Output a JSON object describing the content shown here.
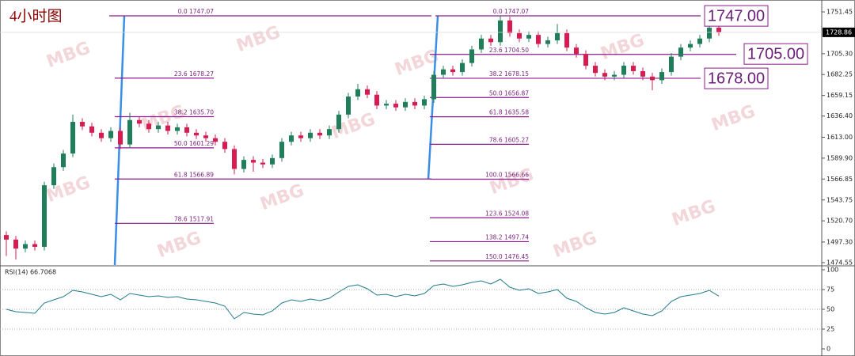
{
  "chart_data": [
    {
      "type": "candlestick",
      "title": "4小时图",
      "watermark": "MBG",
      "up_color": "#1f7f5a",
      "down_color": "#d81b50",
      "open": [
        1505,
        1500,
        1490,
        1495,
        1492,
        1560,
        1580,
        1595,
        1630,
        1625,
        1618,
        1612,
        1620,
        1605,
        1632,
        1628,
        1622,
        1626,
        1620,
        1624,
        1618,
        1615,
        1612,
        1608,
        1600,
        1578,
        1588,
        1585,
        1583,
        1590,
        1608,
        1615,
        1612,
        1618,
        1615,
        1622,
        1638,
        1658,
        1666,
        1660,
        1648,
        1650,
        1646,
        1652,
        1648,
        1655,
        1682,
        1688,
        1685,
        1695,
        1710,
        1722,
        1718,
        1742,
        1728,
        1722,
        1726,
        1716,
        1720,
        1728,
        1712,
        1705,
        1692,
        1684,
        1680,
        1682,
        1692,
        1686,
        1680,
        1676,
        1685,
        1702,
        1712,
        1716,
        1722,
        1734
      ],
      "high": [
        1509,
        1504,
        1499,
        1499,
        1564,
        1584,
        1599,
        1638,
        1634,
        1629,
        1622,
        1624,
        1624,
        1640,
        1636,
        1632,
        1630,
        1630,
        1628,
        1628,
        1622,
        1619,
        1616,
        1612,
        1604,
        1592,
        1592,
        1589,
        1594,
        1612,
        1619,
        1619,
        1622,
        1622,
        1626,
        1642,
        1662,
        1672,
        1670,
        1664,
        1654,
        1654,
        1656,
        1656,
        1659,
        1686,
        1692,
        1692,
        1699,
        1714,
        1726,
        1726,
        1747,
        1746,
        1732,
        1730,
        1730,
        1724,
        1738,
        1732,
        1716,
        1709,
        1696,
        1688,
        1686,
        1696,
        1696,
        1690,
        1684,
        1689,
        1706,
        1716,
        1720,
        1726,
        1740,
        1738
      ],
      "low": [
        1482,
        1478,
        1486,
        1488,
        1488,
        1556,
        1576,
        1591,
        1621,
        1614,
        1608,
        1608,
        1600,
        1601,
        1624,
        1618,
        1618,
        1616,
        1616,
        1614,
        1611,
        1608,
        1604,
        1596,
        1572,
        1574,
        1575,
        1579,
        1579,
        1586,
        1604,
        1608,
        1608,
        1611,
        1611,
        1618,
        1634,
        1654,
        1656,
        1644,
        1644,
        1642,
        1642,
        1644,
        1644,
        1651,
        1678,
        1681,
        1681,
        1691,
        1706,
        1714,
        1714,
        1724,
        1718,
        1718,
        1712,
        1712,
        1716,
        1708,
        1701,
        1688,
        1680,
        1676,
        1676,
        1678,
        1682,
        1676,
        1665,
        1672,
        1681,
        1698,
        1708,
        1712,
        1718,
        1725
      ],
      "close": [
        1500,
        1490,
        1495,
        1492,
        1560,
        1580,
        1595,
        1630,
        1625,
        1618,
        1612,
        1620,
        1605,
        1632,
        1628,
        1622,
        1626,
        1620,
        1624,
        1618,
        1615,
        1612,
        1608,
        1600,
        1578,
        1588,
        1585,
        1583,
        1590,
        1608,
        1615,
        1612,
        1618,
        1615,
        1622,
        1638,
        1658,
        1666,
        1660,
        1648,
        1650,
        1646,
        1652,
        1648,
        1655,
        1682,
        1688,
        1685,
        1695,
        1710,
        1722,
        1718,
        1742,
        1728,
        1722,
        1726,
        1716,
        1720,
        1728,
        1712,
        1705,
        1692,
        1684,
        1680,
        1682,
        1692,
        1686,
        1680,
        1676,
        1685,
        1702,
        1712,
        1716,
        1722,
        1734,
        1729
      ],
      "ylim": [
        1471.9,
        1760.2
      ],
      "yticks": [
        {
          "value": 1751.45,
          "label": "1751.45"
        },
        {
          "value": 1705.3,
          "label": "1705.30"
        },
        {
          "value": 1682.25,
          "label": "1682.25"
        },
        {
          "value": 1659.15,
          "label": "1659.15"
        },
        {
          "value": 1636.4,
          "label": "1636.40"
        },
        {
          "value": 1613,
          "label": "1613.00"
        },
        {
          "value": 1589.9,
          "label": "1589.90"
        },
        {
          "value": 1566.85,
          "label": "1566.85"
        },
        {
          "value": 1543.75,
          "label": "1543.75"
        },
        {
          "value": 1520.7,
          "label": "1520.70"
        },
        {
          "value": 1497.3,
          "label": "1497.30"
        },
        {
          "value": 1474.55,
          "label": "1474.55"
        }
      ],
      "current_price": 1728.86,
      "fib_color": "#8b1a8b",
      "swing_color": "#3a8ee6",
      "fib_levels": [
        {
          "label": "0.0  1747.07",
          "value": 1747.07
        },
        {
          "label": "23.6  1678.27",
          "value": 1678.27
        },
        {
          "label": "38.2  1635.70",
          "value": 1635.7
        },
        {
          "label": "50.0  1601.29",
          "value": 1601.29
        },
        {
          "label": "61.8  1566.89",
          "value": 1566.89
        },
        {
          "label": "78.6  1517.91",
          "value": 1517.91
        },
        {
          "label": "0.0  1747.07",
          "value": 1747.07
        },
        {
          "label": "23.6  1704.50",
          "value": 1704.5
        },
        {
          "label": "38.2  1678.15",
          "value": 1678.15
        },
        {
          "label": "50.0  1656.87",
          "value": 1656.87
        },
        {
          "label": "61.8  1635.58",
          "value": 1635.58
        },
        {
          "label": "78.6  1605.27",
          "value": 1605.27
        },
        {
          "label": "100.0  1566.66",
          "value": 1566.66
        },
        {
          "label": "123.6  1524.08",
          "value": 1524.08
        },
        {
          "label": "138.2  1497.74",
          "value": 1497.74
        },
        {
          "label": "150.0  1476.45",
          "value": 1476.45
        }
      ],
      "annotations": [
        {
          "label": "1747.00",
          "value": 1747
        },
        {
          "label": "1705.00",
          "value": 1705
        },
        {
          "label": "1678.00",
          "value": 1678
        }
      ]
    },
    {
      "type": "line",
      "title": "RSI(14) 66.7068",
      "color": "#1f7a8c",
      "values": [
        50,
        47,
        46,
        45,
        58,
        62,
        66,
        74,
        72,
        69,
        66,
        69,
        62,
        70,
        68,
        66,
        67,
        65,
        66,
        63,
        62,
        60,
        58,
        54,
        38,
        46,
        44,
        43,
        48,
        58,
        62,
        60,
        63,
        61,
        64,
        72,
        79,
        81,
        76,
        68,
        69,
        66,
        69,
        67,
        70,
        80,
        82,
        79,
        81,
        84,
        86,
        82,
        88,
        78,
        74,
        76,
        70,
        72,
        75,
        64,
        60,
        52,
        46,
        44,
        46,
        52,
        48,
        44,
        42,
        48,
        60,
        66,
        68,
        70,
        74,
        66.7068
      ],
      "ylim": [
        -6,
        104
      ],
      "yticks": [
        0,
        25,
        50,
        75,
        100
      ]
    }
  ]
}
